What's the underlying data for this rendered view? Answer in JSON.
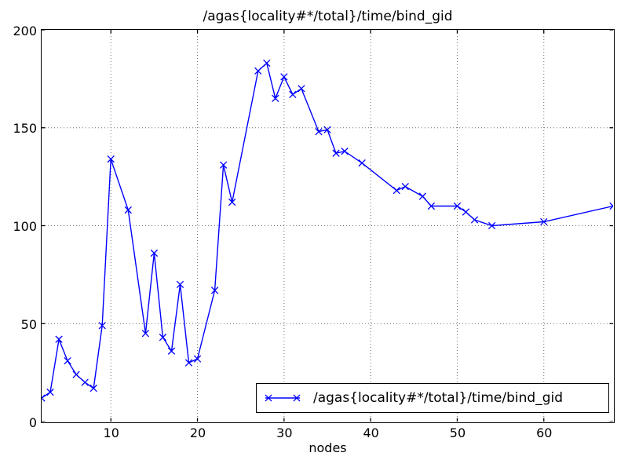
{
  "figure": {
    "background": "#ffffff"
  },
  "chart_data": {
    "type": "line",
    "title": "/agas{locality#*/total}/time/bind_gid",
    "xlabel": "nodes",
    "ylabel": "",
    "xlim": [
      2,
      68
    ],
    "ylim": [
      0,
      200
    ],
    "xticks": [
      10,
      20,
      30,
      40,
      50,
      60
    ],
    "yticks": [
      0,
      50,
      100,
      150,
      200
    ],
    "grid": true,
    "grid_style": "dotted",
    "marker": "x",
    "legend": {
      "position": "lower-right",
      "entries": [
        "/agas{locality#*/total}/time/bind_gid"
      ]
    },
    "colors": {
      "line": "#0000ff",
      "grid": "#6e6e6e",
      "axis": "#000000",
      "background": "#ffffff",
      "text": "#000000"
    },
    "series": [
      {
        "name": "/agas{locality#*/total}/time/bind_gid",
        "x": [
          2,
          3,
          4,
          5,
          6,
          7,
          8,
          9,
          10,
          12,
          14,
          15,
          16,
          17,
          18,
          19,
          20,
          22,
          23,
          24,
          27,
          28,
          29,
          30,
          31,
          32,
          34,
          35,
          36,
          37,
          39,
          43,
          44,
          46,
          47,
          50,
          51,
          52,
          54,
          60,
          68
        ],
        "y": [
          12,
          15,
          42,
          31,
          24,
          20,
          17,
          49,
          134,
          108,
          45,
          86,
          43,
          36,
          70,
          30,
          32,
          67,
          131,
          112,
          179,
          183,
          165,
          176,
          167,
          170,
          148,
          149,
          137,
          138,
          132,
          118,
          120,
          115,
          110,
          110,
          107,
          103,
          100,
          102,
          110
        ]
      }
    ]
  }
}
